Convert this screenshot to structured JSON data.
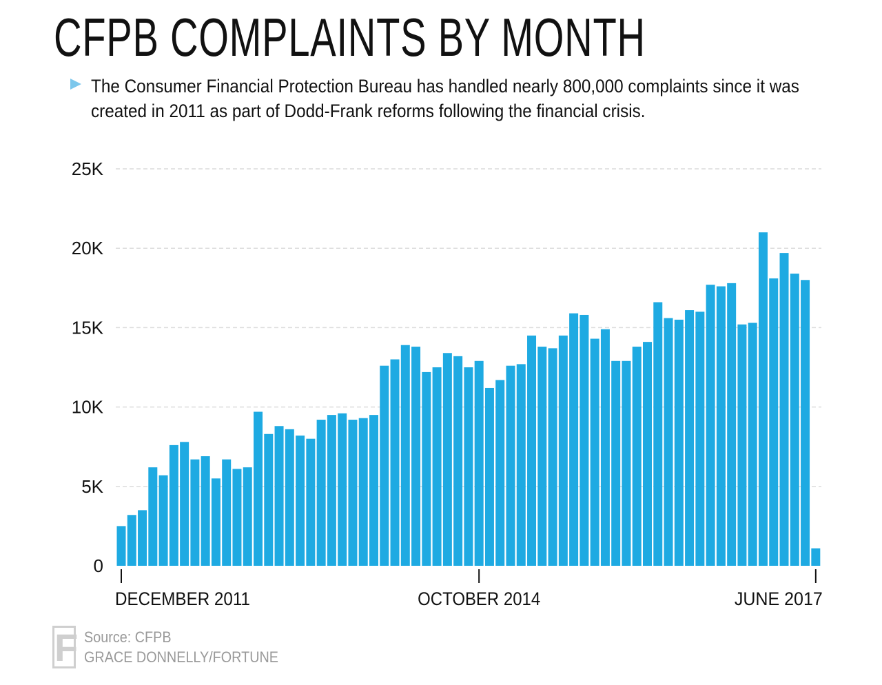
{
  "header": {
    "title": "CFPB COMPLAINTS BY MONTH",
    "subtitle": "The Consumer Financial Protection Bureau has handled nearly 800,000 complaints since it was created in 2011 as part of Dodd-Frank reforms following the financial crisis."
  },
  "footer": {
    "source": "Source: CFPB",
    "credit": "GRACE DONNELLY/FORTUNE",
    "logo_letter": "F"
  },
  "chart_data": {
    "type": "bar",
    "title": "CFPB COMPLAINTS BY MONTH",
    "xlabel": "",
    "ylabel": "",
    "ylim": [
      0,
      25000
    ],
    "yticks": [
      0,
      5000,
      10000,
      15000,
      20000,
      25000
    ],
    "ytick_labels": [
      "0",
      "5K",
      "10K",
      "15K",
      "20K",
      "25K"
    ],
    "xtick_labels": [
      {
        "index": 0,
        "label": "DECEMBER 2011"
      },
      {
        "index": 34,
        "label": "OCTOBER 2014"
      },
      {
        "index": 66,
        "label": "JUNE 2017"
      }
    ],
    "grid": true,
    "color": "#1eaae2",
    "start_month": "December 2011",
    "end_month": "June 2017",
    "values": [
      2500,
      3200,
      3500,
      6200,
      5700,
      7600,
      7800,
      6700,
      6900,
      5500,
      6700,
      6100,
      6200,
      9700,
      8300,
      8800,
      8600,
      8200,
      8000,
      9200,
      9500,
      9600,
      9200,
      9300,
      9500,
      12600,
      13000,
      13900,
      13800,
      12200,
      12500,
      13400,
      13200,
      12500,
      12900,
      11200,
      11700,
      12600,
      12700,
      14500,
      13800,
      13700,
      14500,
      15900,
      15800,
      14300,
      14900,
      12900,
      12900,
      13800,
      14100,
      16600,
      15600,
      15500,
      16100,
      16000,
      17700,
      17600,
      17800,
      15200,
      15300,
      21000,
      18100,
      19700,
      18400,
      18000,
      1100
    ]
  }
}
